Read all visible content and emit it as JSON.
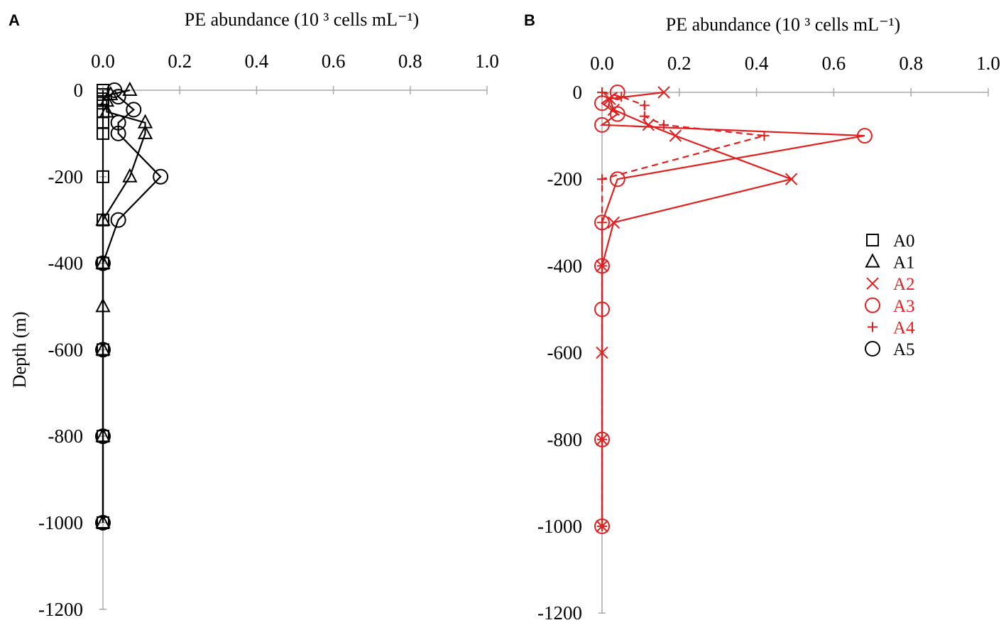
{
  "chart_data": [
    {
      "type": "scatter",
      "panel": "A",
      "title": "PE abundance (10 ³ cells mL⁻¹)",
      "xlabel": "PE abundance (10 ³ cells mL⁻¹)",
      "ylabel": "Depth (m)",
      "xlim": [
        0,
        1.0
      ],
      "ylim": [
        -1200,
        0
      ],
      "xticks": [
        "0.0",
        "0.2",
        "0.4",
        "0.6",
        "0.8",
        "1.0"
      ],
      "yticks": [
        "0",
        "-200",
        "-400",
        "-600",
        "-800",
        "-1000",
        "-1200"
      ],
      "series": [
        {
          "name": "A0",
          "marker": "square",
          "color": "#000000",
          "dashed": false,
          "points": [
            [
              0,
              0
            ],
            [
              0,
              -10
            ],
            [
              0,
              -20
            ],
            [
              0,
              -30
            ],
            [
              0,
              -50
            ],
            [
              0,
              -75
            ],
            [
              0,
              -100
            ],
            [
              0,
              -200
            ],
            [
              0,
              -300
            ],
            [
              0,
              -400
            ],
            [
              0,
              -600
            ],
            [
              0,
              -800
            ],
            [
              0,
              -1000
            ]
          ]
        },
        {
          "name": "A1",
          "marker": "triangle",
          "color": "#000000",
          "dashed": false,
          "points": [
            [
              0.07,
              0
            ],
            [
              0.02,
              -10
            ],
            [
              0.01,
              -25
            ],
            [
              0.01,
              -50
            ],
            [
              0.11,
              -75
            ],
            [
              0.11,
              -100
            ],
            [
              0.07,
              -200
            ],
            [
              0,
              -300
            ],
            [
              0,
              -400
            ],
            [
              0,
              -500
            ],
            [
              0,
              -600
            ],
            [
              0,
              -800
            ],
            [
              0,
              -1000
            ]
          ]
        },
        {
          "name": "A5",
          "marker": "circle",
          "color": "#000000",
          "dashed": false,
          "points": [
            [
              0.03,
              0
            ],
            [
              0.04,
              -15
            ],
            [
              0.08,
              -45
            ],
            [
              0.04,
              -75
            ],
            [
              0.04,
              -100
            ],
            [
              0.15,
              -200
            ],
            [
              0.04,
              -300
            ],
            [
              0,
              -400
            ],
            [
              0,
              -600
            ],
            [
              0,
              -800
            ],
            [
              0,
              -1000
            ]
          ]
        }
      ]
    },
    {
      "type": "scatter",
      "panel": "B",
      "title": "PE abundance (10 ³ cells mL⁻¹)",
      "xlabel": "PE abundance (10 ³ cells mL⁻¹)",
      "ylabel": "",
      "xlim": [
        0,
        1.0
      ],
      "ylim": [
        -1200,
        0
      ],
      "xticks": [
        "0.0",
        "0.2",
        "0.4",
        "0.6",
        "0.8",
        "1.0"
      ],
      "yticks": [
        "0",
        "-200",
        "-400",
        "-600",
        "-800",
        "-1000",
        "-1200"
      ],
      "legend": "right",
      "series": [
        {
          "name": "A2",
          "marker": "x",
          "color": "#e02020",
          "dashed": false,
          "points": [
            [
              0.16,
              0
            ],
            [
              0.02,
              -15
            ],
            [
              0.03,
              -40
            ],
            [
              0.12,
              -75
            ],
            [
              0.19,
              -100
            ],
            [
              0.49,
              -200
            ],
            [
              0.03,
              -300
            ],
            [
              0,
              -400
            ],
            [
              0,
              -600
            ],
            [
              0,
              -800
            ],
            [
              0,
              -1000
            ]
          ]
        },
        {
          "name": "A3",
          "marker": "circle",
          "color": "#e02020",
          "dashed": false,
          "points": [
            [
              0.04,
              0
            ],
            [
              0,
              -25
            ],
            [
              0.04,
              -50
            ],
            [
              0,
              -75
            ],
            [
              0.68,
              -100
            ],
            [
              0.04,
              -200
            ],
            [
              0,
              -300
            ],
            [
              0,
              -400
            ],
            [
              0,
              -500
            ],
            [
              0,
              -800
            ],
            [
              0,
              -1000
            ]
          ]
        },
        {
          "name": "A4",
          "marker": "plus",
          "color": "#e02020",
          "dashed": true,
          "points": [
            [
              0,
              0
            ],
            [
              0.05,
              -10
            ],
            [
              0.11,
              -30
            ],
            [
              0.11,
              -55
            ],
            [
              0.16,
              -75
            ],
            [
              0.42,
              -100
            ],
            [
              0,
              -200
            ],
            [
              0,
              -300
            ],
            [
              0,
              -400
            ],
            [
              0,
              -800
            ],
            [
              0,
              -1000
            ]
          ]
        }
      ]
    }
  ],
  "panels": {
    "a_label": "A",
    "b_label": "B"
  },
  "legend": [
    {
      "name": "A0",
      "marker": "square",
      "color": "#000000"
    },
    {
      "name": "A1",
      "marker": "triangle",
      "color": "#000000"
    },
    {
      "name": "A2",
      "marker": "x",
      "color": "#e02020"
    },
    {
      "name": "A3",
      "marker": "circle",
      "color": "#e02020"
    },
    {
      "name": "A4",
      "marker": "plus",
      "color": "#e02020"
    },
    {
      "name": "A5",
      "marker": "circle",
      "color": "#000000"
    }
  ]
}
